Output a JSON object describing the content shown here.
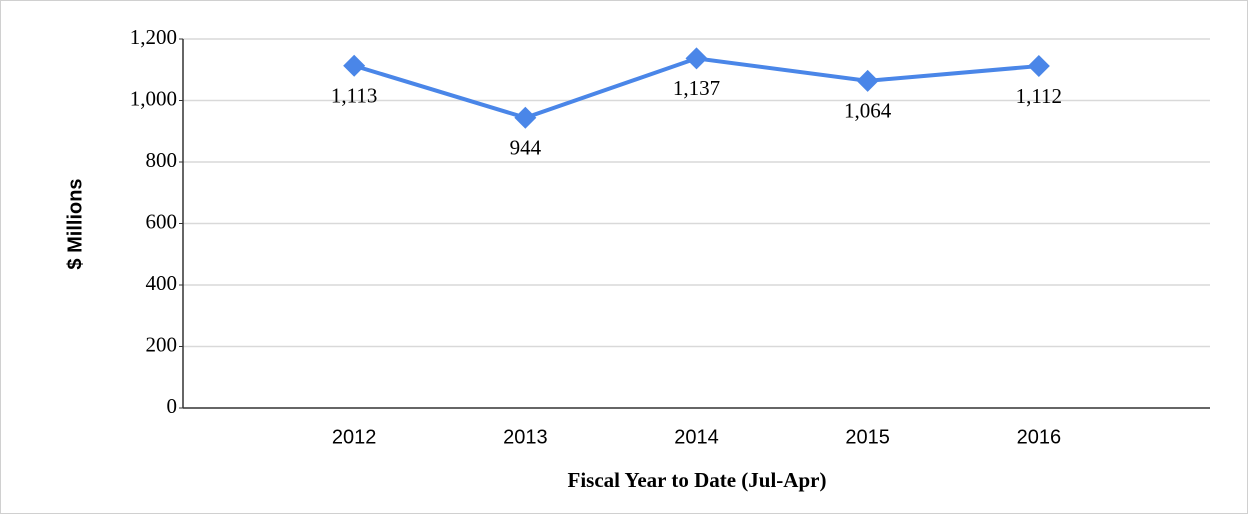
{
  "chart_data": {
    "type": "line",
    "xlabel": "Fiscal Year to Date (Jul-Apr)",
    "ylabel": "$ Millions",
    "categories": [
      "2012",
      "2013",
      "2014",
      "2015",
      "2016"
    ],
    "series": [
      {
        "name": null,
        "color": "#4a86e8",
        "values": [
          1113,
          944,
          1137,
          1064,
          1112
        ],
        "value_labels": [
          "1,113",
          "944",
          "1,137",
          "1,064",
          "1,112"
        ]
      }
    ],
    "ylim": [
      0,
      1200
    ],
    "yticks": [
      0,
      200,
      400,
      600,
      800,
      {
        "value": 1000,
        "label": "1,000"
      },
      {
        "value": 1200,
        "label": "1,200"
      }
    ],
    "grid": true
  }
}
